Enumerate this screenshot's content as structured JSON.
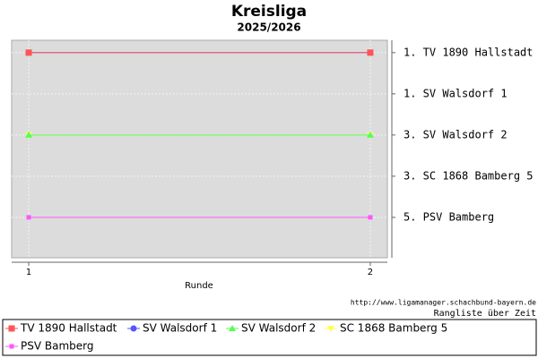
{
  "chart_data": {
    "type": "line",
    "title": "Kreisliga",
    "subtitle": "2025/2026",
    "x_label": "Runde",
    "x": [
      1,
      2
    ],
    "xlim": [
      0.95,
      2.05
    ],
    "xticks": [
      1,
      2
    ],
    "ylim": [
      0.7,
      5.98
    ],
    "y_inverted": true,
    "yticks": [
      {
        "value": 1,
        "label": "1. TV 1890 Hallstadt"
      },
      {
        "value": 2,
        "label": "1. SV Walsdorf 1"
      },
      {
        "value": 3,
        "label": "3. SV Walsdorf 2"
      },
      {
        "value": 4,
        "label": "3. SC 1868 Bamberg 5"
      },
      {
        "value": 5,
        "label": "5. PSV Bamberg"
      }
    ],
    "grid": true,
    "series": [
      {
        "name": "TV 1890 Hallstadt",
        "color": "#ff5555",
        "marker": "square",
        "values": [
          1,
          1
        ]
      },
      {
        "name": "SV Walsdorf 1",
        "color": "#5555ff",
        "marker": "circle",
        "values": [
          1,
          1
        ]
      },
      {
        "name": "SV Walsdorf 2",
        "color": "#55ff55",
        "marker": "triangle",
        "values": [
          3,
          3
        ]
      },
      {
        "name": "SC 1868 Bamberg 5",
        "color": "#ffff55",
        "marker": "triangle-down",
        "values": [
          3,
          3
        ]
      },
      {
        "name": "PSV Bamberg",
        "color": "#ff55ff",
        "marker": "small-square",
        "values": [
          5,
          5
        ]
      }
    ],
    "source": "http://www.ligamanager.schachbund-bayern.de",
    "note": "Rangliste über Zeit"
  }
}
